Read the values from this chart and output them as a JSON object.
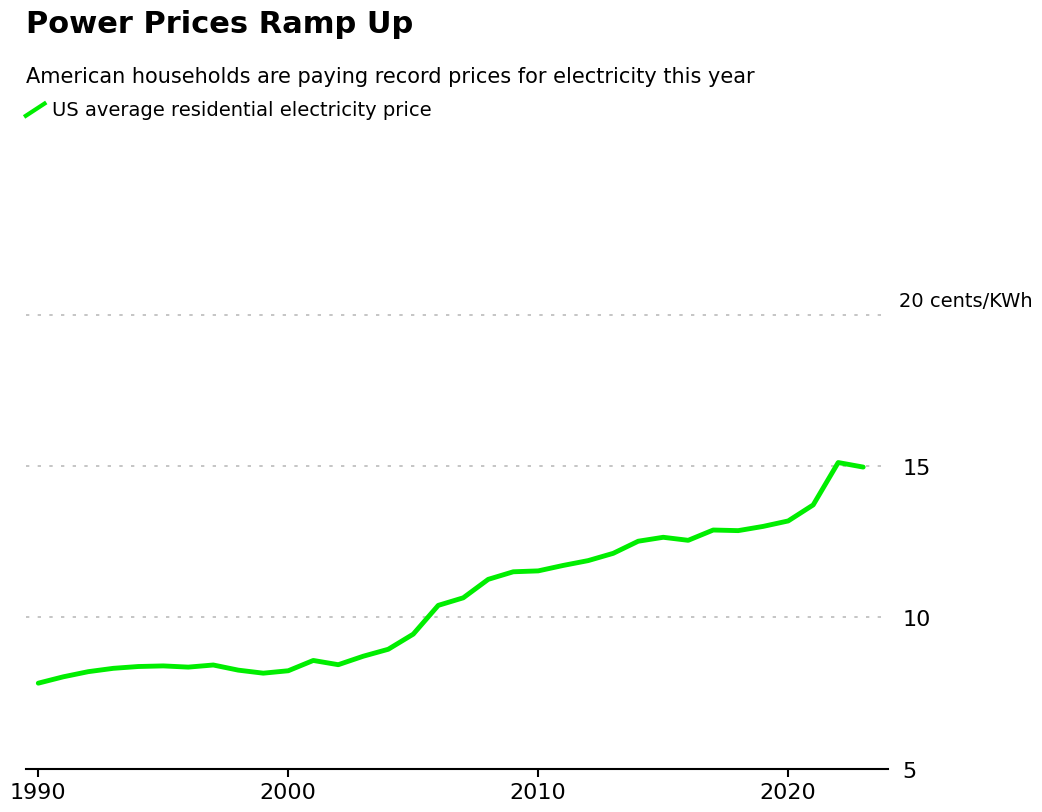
{
  "title": "Power Prices Ramp Up",
  "subtitle": "American households are paying record prices for electricity this year",
  "legend_label": "US average residential electricity price",
  "line_color": "#00ee00",
  "background_color": "#ffffff",
  "title_fontsize": 22,
  "subtitle_fontsize": 15,
  "legend_fontsize": 14,
  "tick_fontsize": 16,
  "unit_label": "20 cents/KWh",
  "unit_fontsize": 14,
  "years": [
    1990,
    1991,
    1992,
    1993,
    1994,
    1995,
    1996,
    1997,
    1998,
    1999,
    2000,
    2001,
    2002,
    2003,
    2004,
    2005,
    2006,
    2007,
    2008,
    2009,
    2010,
    2011,
    2012,
    2013,
    2014,
    2015,
    2016,
    2017,
    2018,
    2019,
    2020,
    2021,
    2022,
    2023
  ],
  "values": [
    7.83,
    8.04,
    8.21,
    8.32,
    8.38,
    8.4,
    8.36,
    8.43,
    8.26,
    8.16,
    8.24,
    8.58,
    8.44,
    8.72,
    8.95,
    9.45,
    10.4,
    10.65,
    11.26,
    11.51,
    11.54,
    11.72,
    11.88,
    12.12,
    12.52,
    12.65,
    12.55,
    12.89,
    12.87,
    13.01,
    13.19,
    13.72,
    15.12,
    14.97
  ],
  "ylim": [
    5,
    20
  ],
  "yticks": [
    5,
    10,
    15,
    20
  ],
  "xlim": [
    1989.5,
    2024.0
  ],
  "xticks": [
    1990,
    2000,
    2010,
    2020
  ],
  "grid_color": "#bbbbbb",
  "line_width": 3.5
}
